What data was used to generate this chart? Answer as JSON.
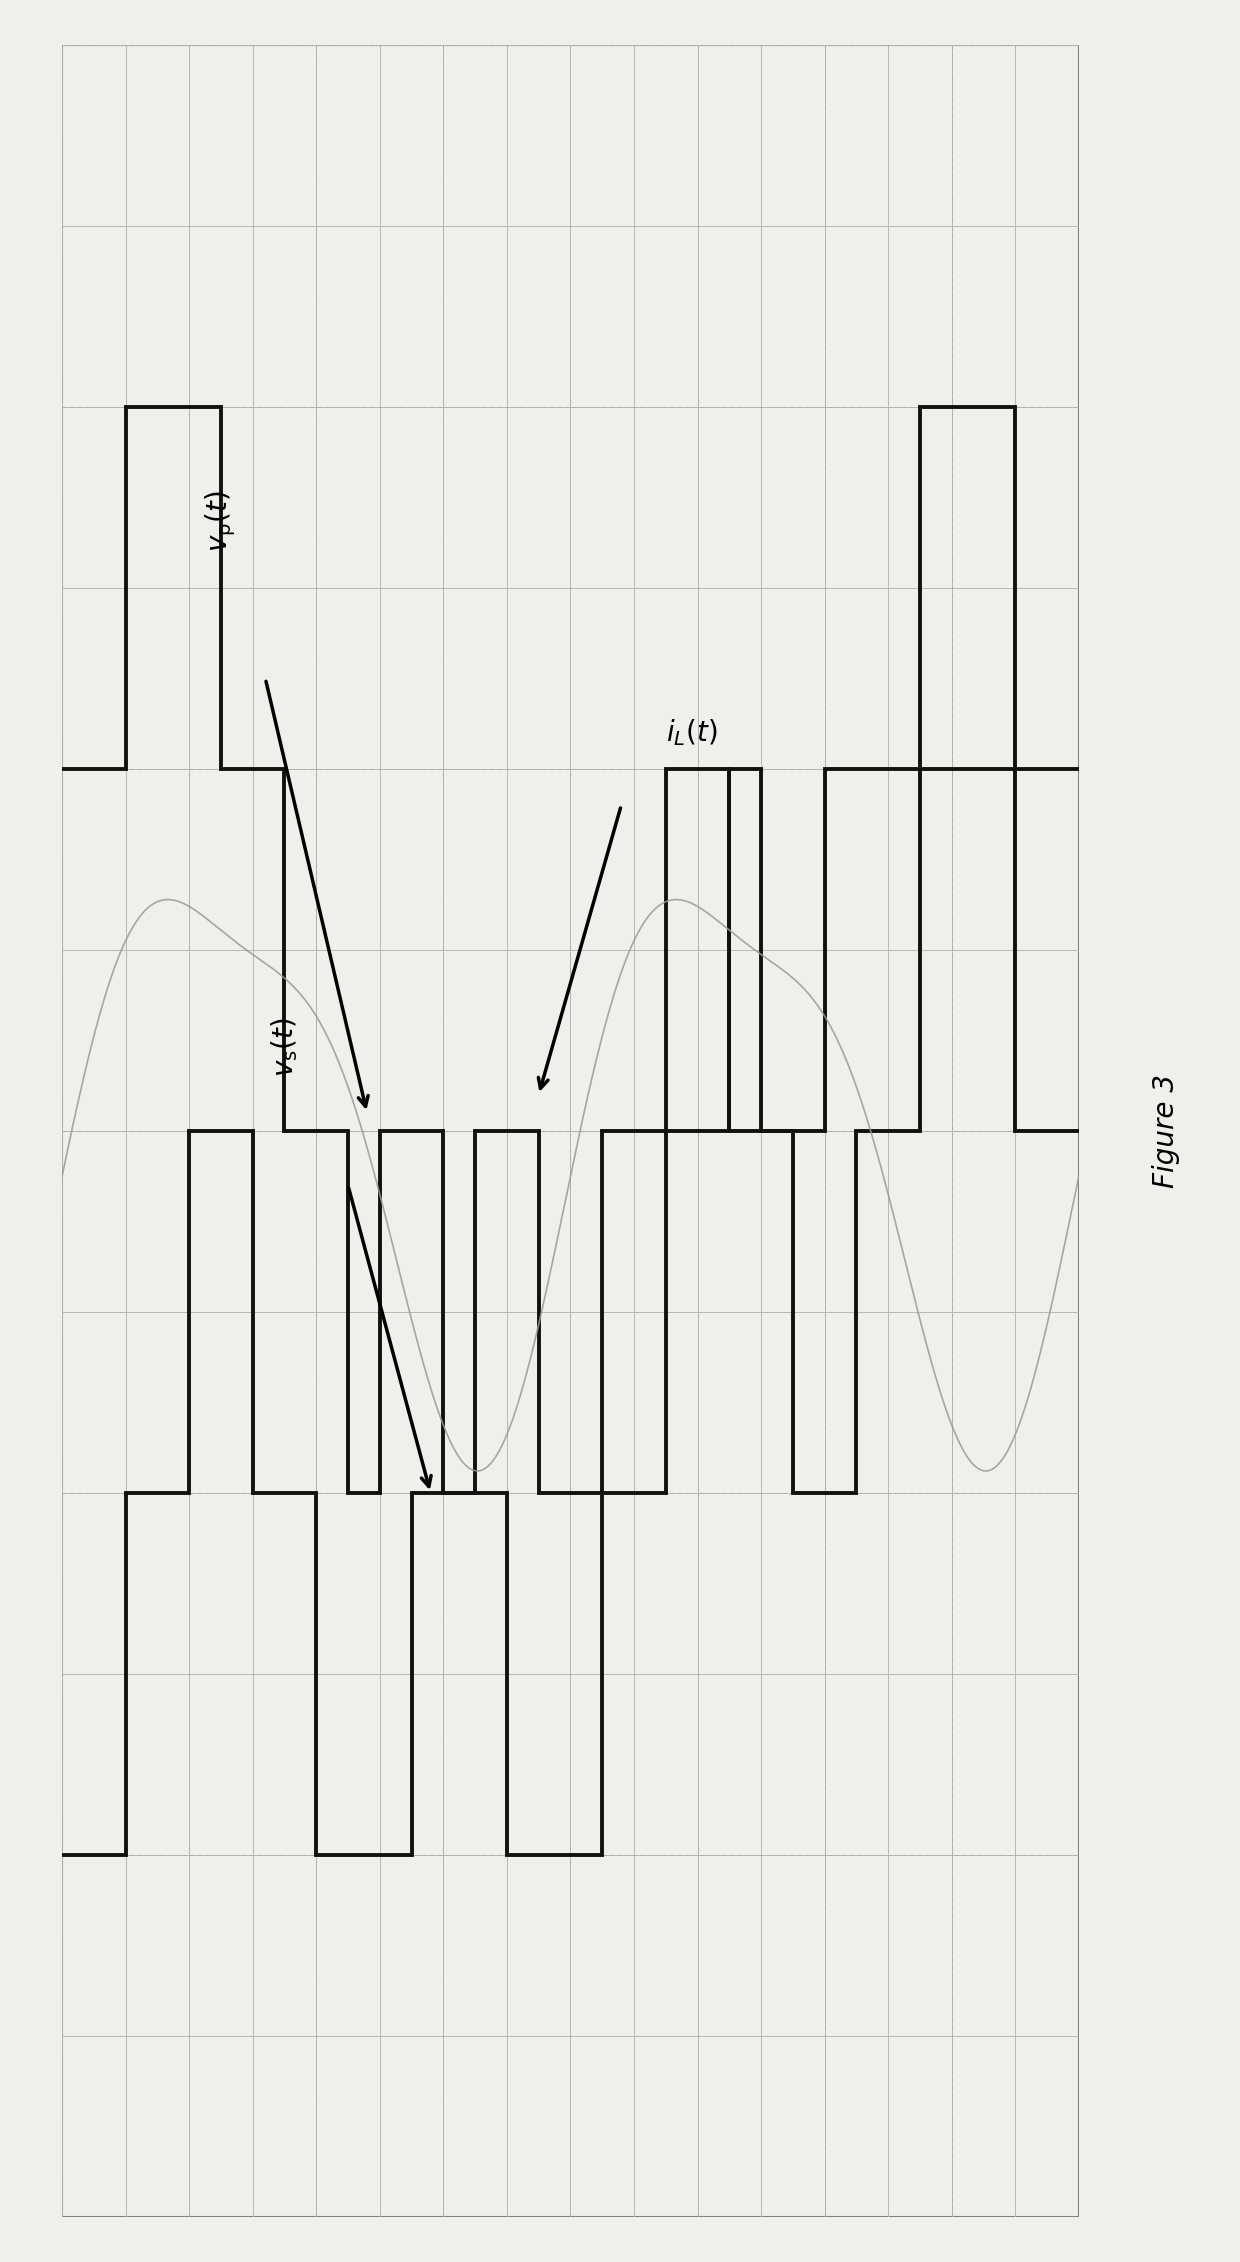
{
  "fig_width": 12.4,
  "fig_height": 22.62,
  "dpi": 100,
  "bg_color": "#f0efe9",
  "grid_solid_color": "#b8b8b0",
  "grid_dot_color": "#aaaaaa",
  "wave_color": "#111111",
  "il_color": "#999999",
  "lw_wave": 2.8,
  "lw_il": 1.2,
  "xlim": [
    0,
    16
  ],
  "ylim": [
    -6,
    6
  ],
  "vp_label": "$v_{\\mathrm{p}}(t)$",
  "vs_label": "$v_{\\mathrm{s}}(t)$",
  "il_label": "$i_L(t)$",
  "fig_label": "Figure 3",
  "vp_bp": [
    [
      0.0,
      2
    ],
    [
      1.0,
      2
    ],
    [
      1.0,
      4
    ],
    [
      2.5,
      4
    ],
    [
      2.5,
      2
    ],
    [
      3.5,
      2
    ],
    [
      3.5,
      0
    ],
    [
      4.5,
      0
    ],
    [
      4.5,
      -2
    ],
    [
      5.0,
      -2
    ],
    [
      5.0,
      0
    ],
    [
      6.0,
      0
    ],
    [
      6.0,
      -2
    ],
    [
      7.0,
      -2
    ],
    [
      7.0,
      -4
    ],
    [
      8.5,
      -4
    ],
    [
      8.5,
      -2
    ],
    [
      9.5,
      -2
    ],
    [
      9.5,
      0
    ],
    [
      10.5,
      0
    ],
    [
      10.5,
      2
    ],
    [
      11.0,
      2
    ],
    [
      11.0,
      0
    ],
    [
      12.0,
      0
    ],
    [
      12.0,
      2
    ],
    [
      13.5,
      2
    ],
    [
      13.5,
      4
    ],
    [
      15.0,
      4
    ],
    [
      15.0,
      2
    ],
    [
      16.0,
      2
    ]
  ],
  "vs_bp": [
    [
      0.0,
      -4
    ],
    [
      1.0,
      -4
    ],
    [
      1.0,
      -2
    ],
    [
      2.0,
      -2
    ],
    [
      2.0,
      0
    ],
    [
      3.0,
      0
    ],
    [
      3.0,
      -2
    ],
    [
      4.0,
      -2
    ],
    [
      4.0,
      -4
    ],
    [
      5.5,
      -4
    ],
    [
      5.5,
      -2
    ],
    [
      6.5,
      -2
    ],
    [
      6.5,
      0
    ],
    [
      7.5,
      0
    ],
    [
      7.5,
      -2
    ],
    [
      8.5,
      -2
    ],
    [
      8.5,
      0
    ],
    [
      9.5,
      0
    ],
    [
      9.5,
      2
    ],
    [
      10.5,
      2
    ],
    [
      10.5,
      0
    ],
    [
      11.5,
      0
    ],
    [
      11.5,
      -2
    ],
    [
      12.5,
      -2
    ],
    [
      12.5,
      0
    ],
    [
      13.5,
      0
    ],
    [
      13.5,
      2
    ],
    [
      15.0,
      2
    ],
    [
      15.0,
      0
    ],
    [
      16.0,
      0
    ]
  ]
}
